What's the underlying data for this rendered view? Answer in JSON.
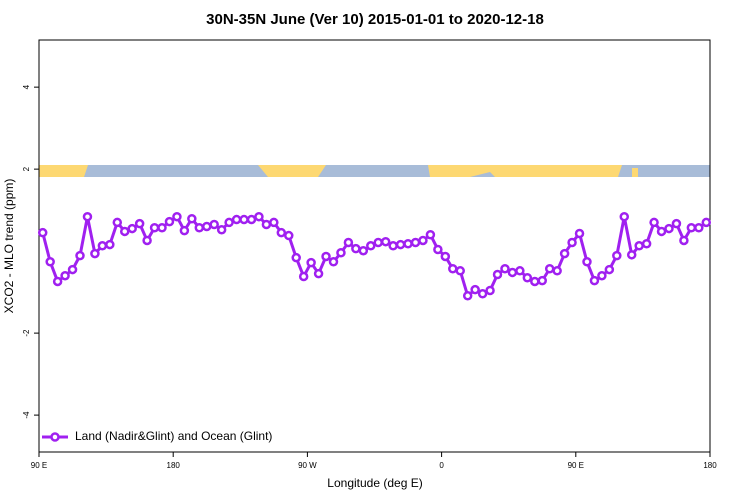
{
  "chart_data": {
    "type": "line",
    "title": "30N-35N June (Ver 10)   2015-01-01 to 2020-12-18",
    "x_label": "Longitude (deg E)",
    "y_label": "XCO2 - MLO trend (ppm)",
    "xlim": [
      90,
      540
    ],
    "xticks": [
      {
        "value": 90,
        "label": "90 E"
      },
      180,
      {
        "value": 270,
        "label": "90 W"
      },
      {
        "value": 360,
        "label": "0"
      },
      {
        "value": 450,
        "label": "90 E"
      },
      {
        "value": 540,
        "label": "180"
      }
    ],
    "ylim": [
      -4.9,
      5.15
    ],
    "yticks": [
      -4,
      -2,
      2,
      4
    ],
    "legend": "bottom-left",
    "x": [
      92.5,
      97.5,
      102.5,
      107.5,
      112.5,
      117.5,
      122.5,
      127.5,
      132.5,
      137.5,
      142.5,
      147.5,
      152.5,
      157.5,
      162.5,
      167.5,
      172.5,
      177.5,
      182.5,
      187.5,
      192.5,
      197.5,
      202.5,
      207.5,
      212.5,
      217.5,
      222.5,
      227.5,
      232.5,
      237.5,
      242.5,
      247.5,
      252.5,
      257.5,
      262.5,
      267.5,
      272.5,
      277.5,
      282.5,
      287.5,
      292.5,
      297.5,
      302.5,
      307.5,
      312.5,
      317.5,
      322.5,
      327.5,
      332.5,
      337.5,
      342.5,
      347.5,
      352.5,
      357.5,
      362.5,
      367.5,
      372.5,
      377.5,
      382.5,
      387.5,
      392.5,
      397.5,
      402.5,
      407.5,
      412.5,
      417.5,
      422.5,
      427.5,
      432.5,
      437.5,
      442.5,
      447.5,
      452.5,
      457.5,
      462.5,
      467.5,
      472.5,
      477.5,
      482.5,
      487.5,
      492.5,
      497.5,
      502.5,
      507.5,
      512.5,
      517.5,
      522.5,
      527.5,
      532.5,
      537.5
    ],
    "series": [
      {
        "name": "Land (Nadir&Glint) and Ocean (Glint)",
        "color": "#a020f0",
        "values": [
          0.45,
          -0.26,
          -0.74,
          -0.6,
          -0.45,
          -0.11,
          0.84,
          -0.06,
          0.13,
          0.16,
          0.7,
          0.48,
          0.55,
          0.67,
          0.26,
          0.57,
          0.57,
          0.72,
          0.84,
          0.5,
          0.79,
          0.57,
          0.6,
          0.65,
          0.52,
          0.7,
          0.77,
          0.77,
          0.77,
          0.84,
          0.65,
          0.7,
          0.45,
          0.38,
          -0.16,
          -0.62,
          -0.28,
          -0.55,
          -0.13,
          -0.26,
          -0.04,
          0.21,
          0.06,
          0.01,
          0.13,
          0.21,
          0.23,
          0.13,
          0.16,
          0.18,
          0.21,
          0.26,
          0.4,
          0.04,
          -0.13,
          -0.43,
          -0.48,
          -1.09,
          -0.94,
          -1.04,
          -0.96,
          -0.57,
          -0.43,
          -0.52,
          -0.48,
          -0.65,
          -0.74,
          -0.72,
          -0.43,
          -0.48,
          -0.06,
          0.21,
          0.43,
          -0.26,
          -0.72,
          -0.6,
          -0.45,
          -0.11,
          0.84,
          -0.09,
          0.13,
          0.18,
          0.7,
          0.48,
          0.55,
          0.67,
          0.26,
          0.57,
          0.57,
          0.7
        ]
      }
    ]
  }
}
